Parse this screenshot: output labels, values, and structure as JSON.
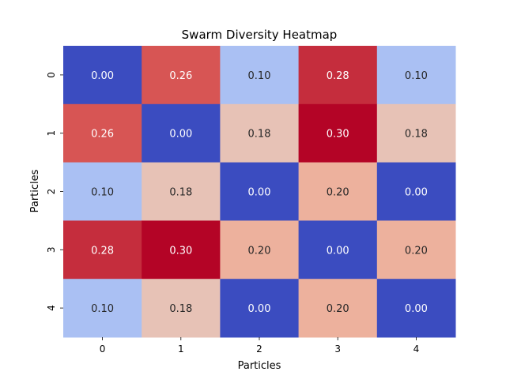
{
  "chart_data": {
    "type": "heatmap",
    "title": "Swarm Diversity Heatmap",
    "xlabel": "Particles",
    "ylabel": "Particles",
    "x_categories": [
      "0",
      "1",
      "2",
      "3",
      "4"
    ],
    "y_categories": [
      "0",
      "1",
      "2",
      "3",
      "4"
    ],
    "values": [
      [
        0.0,
        0.26,
        0.1,
        0.28,
        0.1
      ],
      [
        0.26,
        0.0,
        0.18,
        0.3,
        0.18
      ],
      [
        0.1,
        0.18,
        0.0,
        0.2,
        0.0
      ],
      [
        0.28,
        0.3,
        0.2,
        0.0,
        0.2
      ],
      [
        0.1,
        0.18,
        0.0,
        0.2,
        0.0
      ]
    ],
    "value_format": "0.00",
    "colormap": "coolwarm",
    "vmin": 0.0,
    "vmax": 0.3,
    "annotations": true,
    "colorbar": false,
    "grid": false
  }
}
